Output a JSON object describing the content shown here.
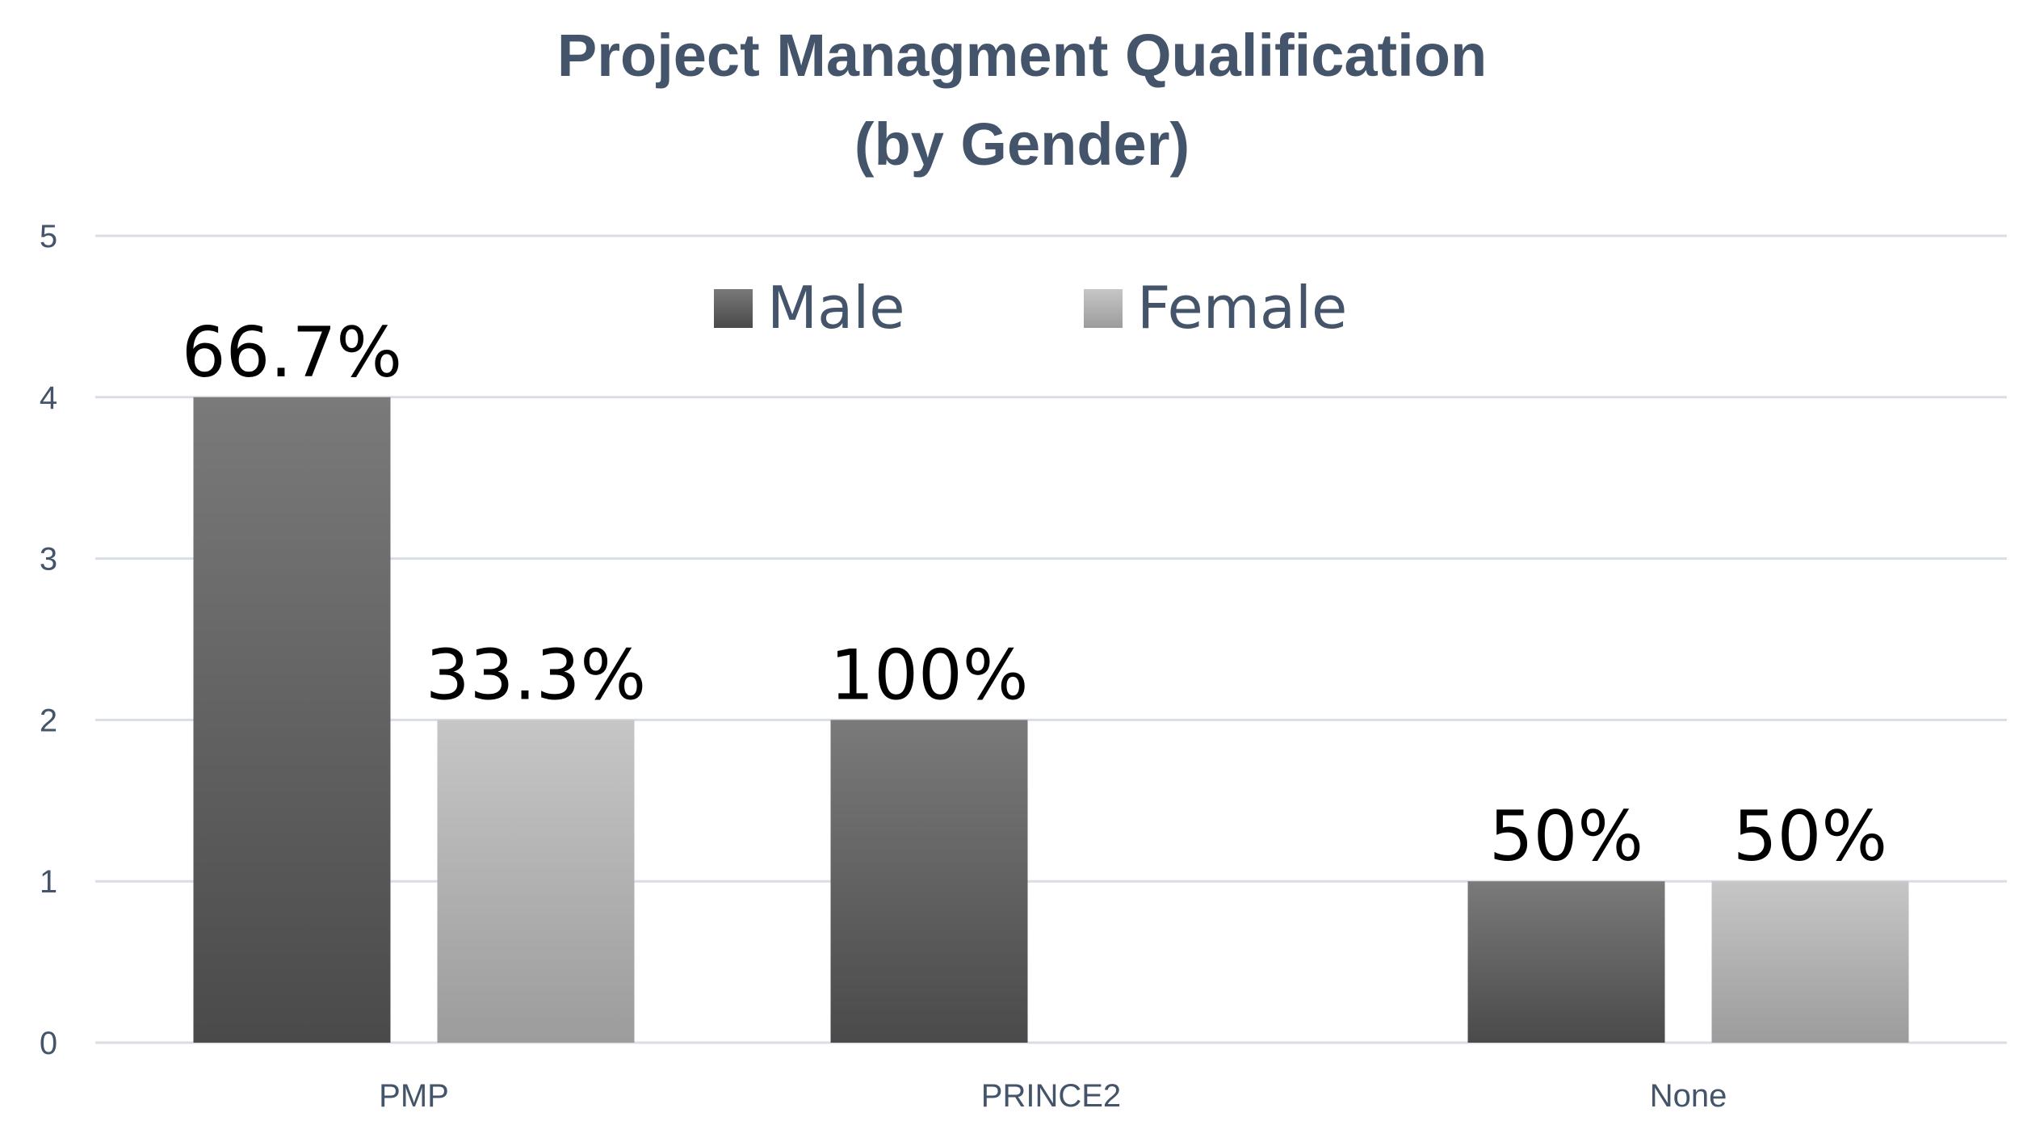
{
  "chart_data": {
    "type": "bar",
    "title": [
      "Project Managment Qualification",
      "(by Gender)"
    ],
    "categories": [
      "PMP",
      "PRINCE2",
      "None"
    ],
    "series": [
      {
        "name": "Male",
        "values": [
          4,
          2,
          1
        ],
        "data_labels": [
          "66.7%",
          "100%",
          "50%"
        ],
        "color_top": "#7a7a7a",
        "color_bottom": "#4a4a4a"
      },
      {
        "name": "Female",
        "values": [
          2,
          0,
          1
        ],
        "data_labels": [
          "33.3%",
          "",
          "50%"
        ],
        "color_top": "#c6c6c6",
        "color_bottom": "#9c9c9c"
      }
    ],
    "ylim": [
      0,
      5
    ],
    "yticks": [
      "0",
      "1",
      "2",
      "3",
      "4",
      "5"
    ],
    "grid": true,
    "legend": "top-center",
    "grid_color": "#d9dee6",
    "text_color": "#44546a"
  }
}
